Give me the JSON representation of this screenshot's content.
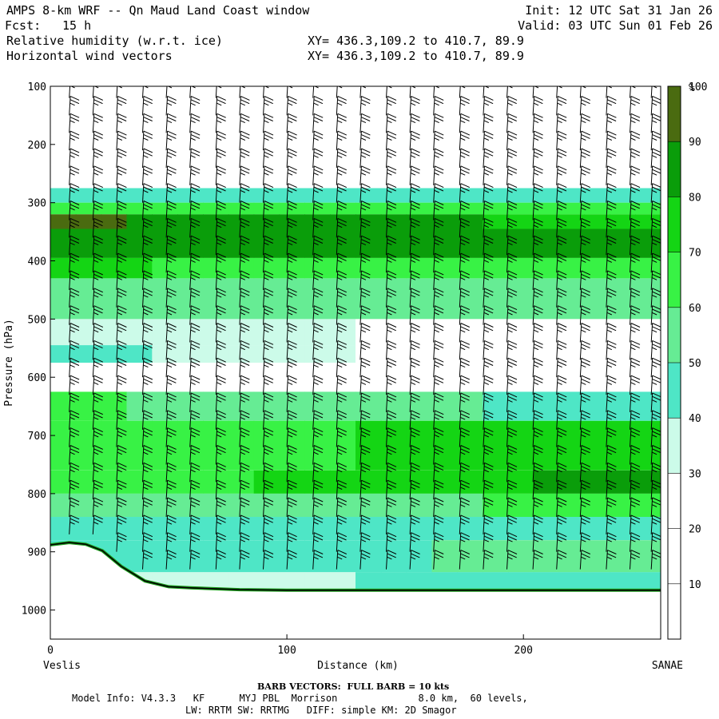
{
  "header": {
    "title": "AMPS 8-km WRF -- Qn Maud Land Coast window",
    "fcst_label": "Fcst:",
    "fcst_value": "15 h",
    "init": "Init: 12 UTC Sat 31 Jan 26",
    "valid": "Valid: 03 UTC Sun 01 Feb 26",
    "field1": "Relative humidity (w.r.t. ice)",
    "field2": "Horizontal wind vectors",
    "xy1": "XY= 436.3,109.2 to 410.7, 89.9",
    "xy2": "XY= 436.3,109.2 to 410.7, 89.9"
  },
  "footer": {
    "barb_note": "BARB VECTORS:  FULL BARB = 10 kts",
    "model_info": "Model Info: V4.3.3   KF      MYJ PBL  Morrison              8.0 km,  60 levels,",
    "model_info2": "LW: RRTM SW: RRTMG   DIFF: simple KM: 2D Smagor"
  },
  "chart_data": {
    "type": "heatmap",
    "title": "Relative humidity (w.r.t. ice)",
    "xlabel": "Distance (km)",
    "ylabel": "Pressure (hPa)",
    "xlim": [
      0,
      258
    ],
    "ylim": [
      1050,
      100
    ],
    "x_ticks": [
      0,
      100,
      200
    ],
    "y_ticks": [
      100,
      200,
      300,
      400,
      500,
      600,
      700,
      800,
      900,
      1000
    ],
    "x_end_labels": {
      "left": "Veslis",
      "right": "SANAE"
    },
    "colorbar": {
      "unit": "%",
      "levels": [
        10,
        20,
        30,
        40,
        50,
        60,
        70,
        80,
        90,
        100
      ],
      "colors": [
        "#ffffff",
        "#ffffff",
        "#ffffff",
        "#ccfbe9",
        "#4ee6c6",
        "#66ec94",
        "#38f245",
        "#14d514",
        "#0a9d0a",
        "#4a6b10"
      ]
    },
    "bands": [
      {
        "p_top": 275,
        "p_bottom": 300,
        "rh_left": 45,
        "rh_right": 45
      },
      {
        "p_top": 300,
        "p_bottom": 320,
        "rh_left": 68,
        "rh_right": 62
      },
      {
        "p_top": 320,
        "p_bottom": 345,
        "rh_left": 92,
        "rh_right": 75
      },
      {
        "p_top": 345,
        "p_bottom": 395,
        "rh_left": 90,
        "rh_right": 88
      },
      {
        "p_top": 395,
        "p_bottom": 430,
        "rh_left": 72,
        "rh_right": 60
      },
      {
        "p_top": 430,
        "p_bottom": 500,
        "rh_left": 52,
        "rh_right": 55
      },
      {
        "p_top": 500,
        "p_bottom": 545,
        "rh_left": 35,
        "rh_right": 25
      },
      {
        "p_top": 545,
        "p_bottom": 575,
        "rh_left": 45,
        "rh_right": 15
      },
      {
        "p_top": 575,
        "p_bottom": 625,
        "rh_left": 25,
        "rh_right": 20
      },
      {
        "p_top": 625,
        "p_bottom": 675,
        "rh_left": 62,
        "rh_right": 45
      },
      {
        "p_top": 675,
        "p_bottom": 760,
        "rh_left": 68,
        "rh_right": 72
      },
      {
        "p_top": 760,
        "p_bottom": 800,
        "rh_left": 62,
        "rh_right": 85
      },
      {
        "p_top": 800,
        "p_bottom": 840,
        "rh_left": 55,
        "rh_right": 62
      },
      {
        "p_top": 840,
        "p_bottom": 880,
        "rh_left": 45,
        "rh_right": 40
      },
      {
        "p_top": 880,
        "p_bottom": 935,
        "rh_left": 42,
        "rh_right": 55
      },
      {
        "p_top": 935,
        "p_bottom": 1050,
        "rh_left": 35,
        "rh_right": 45
      }
    ],
    "terrain": {
      "x": [
        0,
        8,
        15,
        22,
        30,
        40,
        50,
        60,
        80,
        100,
        150,
        200,
        258
      ],
      "p": [
        888,
        884,
        887,
        898,
        925,
        950,
        960,
        962,
        965,
        966,
        966,
        966,
        966
      ]
    },
    "wind_barbs": {
      "x": [
        8,
        18,
        28,
        39,
        49,
        59,
        70,
        80,
        90,
        100,
        111,
        121,
        131,
        142,
        152,
        162,
        173,
        183,
        193,
        204,
        214,
        224,
        235,
        245,
        254
      ],
      "p": [
        120,
        150,
        180,
        210,
        240,
        270,
        300,
        330,
        360,
        390,
        420,
        450,
        480,
        510,
        540,
        570,
        600,
        630,
        660,
        690,
        720,
        750,
        780,
        810,
        840,
        870,
        900,
        930,
        960
      ],
      "speed_kts": 25
    }
  }
}
